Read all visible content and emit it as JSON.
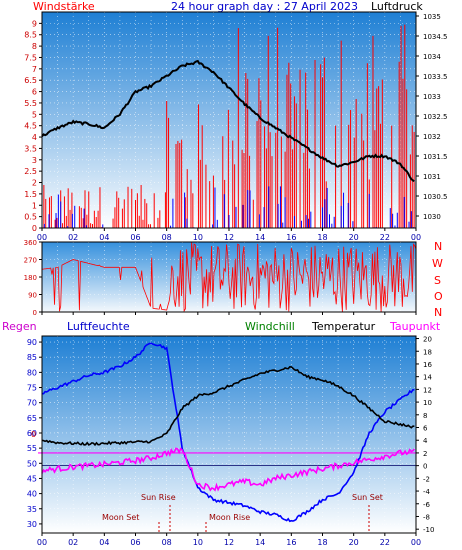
{
  "header": {
    "left": "Windstärke",
    "title": "24 hour graph day : 27 April 2023",
    "right": "Luftdruck"
  },
  "compass_letters": [
    "N",
    "W",
    "S",
    "O",
    "N"
  ],
  "bottom_legend": {
    "regen": "Regen",
    "humidity": "Luftfeuchte",
    "windchill": "Windchill",
    "temperature": "Temperatur",
    "dewpoint": "Taupunkt"
  },
  "events": {
    "sunrise": "Sun Rise",
    "sunset": "Sun Set",
    "moonset": "Moon Set",
    "moonrise": "Moon Rise"
  },
  "rain_marker": "0",
  "colors": {
    "panel_top": "#1e7fd4",
    "panel_bottom": "#ffffff",
    "wind": "#ff0000",
    "gust": "#0000ff",
    "pressure": "#000000",
    "temperature": "#000000",
    "humidity": "#0000ff",
    "dewpoint": "#ff00ff",
    "windchill": "#008000",
    "rain_line": "#ff00ff",
    "event_line": "#cc0000"
  },
  "chart_data": [
    {
      "type": "line",
      "id": "wind-pressure",
      "x_ticks": [
        "00",
        "02",
        "04",
        "06",
        "08",
        "10",
        "12",
        "14",
        "16",
        "18",
        "20",
        "22",
        "00"
      ],
      "left_axis": {
        "label": "Windstärke",
        "ylim": [
          0,
          9.5
        ],
        "ticks": [
          "0",
          "0.5",
          "1",
          "1.5",
          "2",
          "2.5",
          "3",
          "3.5",
          "4",
          "4.5",
          "5",
          "5.5",
          "6",
          "6.5",
          "7",
          "7.5",
          "8",
          "8.5",
          "9"
        ]
      },
      "right_axis": {
        "label": "Luftdruck",
        "ylim": [
          1029.7,
          1035.1
        ],
        "ticks": [
          "1030",
          "1030.5",
          "1031",
          "1031.5",
          "1032",
          "1032.5",
          "1033",
          "1033.5",
          "1034",
          "1034.5",
          "1035"
        ]
      },
      "series": [
        {
          "name": "Luftdruck",
          "axis": "right",
          "x": [
            0,
            1,
            2,
            3,
            4,
            5,
            6,
            7,
            8,
            9,
            10,
            11,
            12,
            13,
            14,
            15,
            16,
            17,
            18,
            19,
            20,
            21,
            22,
            23,
            24
          ],
          "values": [
            1032.0,
            1032.2,
            1032.35,
            1032.3,
            1032.2,
            1032.55,
            1033.1,
            1033.25,
            1033.5,
            1033.75,
            1033.85,
            1033.6,
            1033.2,
            1032.8,
            1032.45,
            1032.2,
            1031.95,
            1031.7,
            1031.45,
            1031.25,
            1031.35,
            1031.5,
            1031.5,
            1031.3,
            1030.8
          ]
        }
      ],
      "wind_summary": [
        {
          "from": 0,
          "to": 8,
          "min": 0,
          "max": 1.9
        },
        {
          "from": 8,
          "to": 12,
          "min": 0.2,
          "max": 5.6
        },
        {
          "from": 12,
          "to": 18,
          "min": 1.0,
          "max": 9.0
        },
        {
          "from": 18,
          "to": 24,
          "min": 0,
          "max": 9.1
        }
      ]
    },
    {
      "type": "line",
      "id": "wind-direction",
      "x_ticks": [
        "00",
        "02",
        "04",
        "06",
        "08",
        "10",
        "12",
        "14",
        "16",
        "18",
        "20",
        "22",
        "00"
      ],
      "left_axis": {
        "ylim": [
          0,
          360
        ],
        "ticks": [
          "0",
          "90",
          "180",
          "270",
          "360"
        ]
      },
      "series": [
        {
          "name": "Windrichtung",
          "x": [
            0,
            1,
            2,
            3,
            4,
            5,
            6,
            7,
            8,
            9,
            10,
            11,
            12,
            13,
            14,
            15,
            16,
            17,
            18,
            19,
            20,
            21,
            22,
            23,
            24
          ],
          "values": [
            220,
            230,
            270,
            250,
            230,
            230,
            230,
            20,
            10,
            300,
            290,
            300,
            280,
            310,
            290,
            290,
            290,
            240,
            280,
            270,
            290,
            260,
            250,
            270,
            300
          ]
        }
      ]
    },
    {
      "type": "line",
      "id": "temp-humidity",
      "x_ticks": [
        "00",
        "02",
        "04",
        "06",
        "08",
        "10",
        "12",
        "14",
        "16",
        "18",
        "20",
        "22",
        "00"
      ],
      "left_axis": {
        "ylim": [
          27,
          92
        ],
        "ticks": [
          "30",
          "35",
          "40",
          "45",
          "50",
          "55",
          "60",
          "65",
          "70",
          "75",
          "80",
          "85",
          "90"
        ]
      },
      "right_axis": {
        "ylim": [
          -10.6,
          20.4
        ],
        "ticks": [
          "-10",
          "-8",
          "-6",
          "-4",
          "-2",
          "0",
          "2",
          "4",
          "6",
          "8",
          "10",
          "12",
          "14",
          "16",
          "18",
          "20"
        ]
      },
      "series": [
        {
          "name": "Luftfeuchte",
          "axis": "left",
          "x": [
            0,
            1,
            2,
            3,
            4,
            5,
            6,
            7,
            8,
            9,
            10,
            11,
            12,
            13,
            14,
            15,
            16,
            17,
            18,
            19,
            20,
            21,
            22,
            23,
            24
          ],
          "values": [
            73,
            75,
            77,
            79,
            80,
            82,
            85,
            90,
            88,
            55,
            42,
            38,
            37,
            36,
            34,
            33,
            31,
            34,
            38,
            40,
            47,
            60,
            67,
            71,
            75
          ]
        },
        {
          "name": "Temperatur",
          "axis": "right",
          "x": [
            0,
            1,
            2,
            3,
            4,
            5,
            6,
            7,
            8,
            9,
            10,
            11,
            12,
            13,
            14,
            15,
            16,
            17,
            18,
            19,
            20,
            21,
            22,
            23,
            24
          ],
          "values": [
            4.0,
            3.6,
            3.5,
            3.4,
            3.5,
            3.6,
            3.7,
            3.8,
            5.0,
            9.0,
            11.0,
            11.5,
            12.5,
            13.5,
            14.5,
            15.0,
            15.5,
            14.0,
            13.5,
            12.5,
            11.0,
            9.0,
            7.0,
            6.5,
            6.0
          ]
        },
        {
          "name": "Taupunkt",
          "axis": "right",
          "x": [
            0,
            1,
            2,
            3,
            4,
            5,
            6,
            7,
            8,
            9,
            10,
            11,
            12,
            13,
            14,
            15,
            16,
            17,
            18,
            19,
            20,
            21,
            22,
            23,
            24
          ],
          "values": [
            -0.8,
            -0.5,
            -0.2,
            0.0,
            0.2,
            0.5,
            0.8,
            1.2,
            2.0,
            2.5,
            -3.0,
            -3.5,
            -3.0,
            -2.5,
            -3.0,
            -2.0,
            -1.5,
            -1.0,
            -0.5,
            0.0,
            0.5,
            1.0,
            1.5,
            2.0,
            2.2
          ]
        }
      ],
      "rain_level": 0
    }
  ]
}
